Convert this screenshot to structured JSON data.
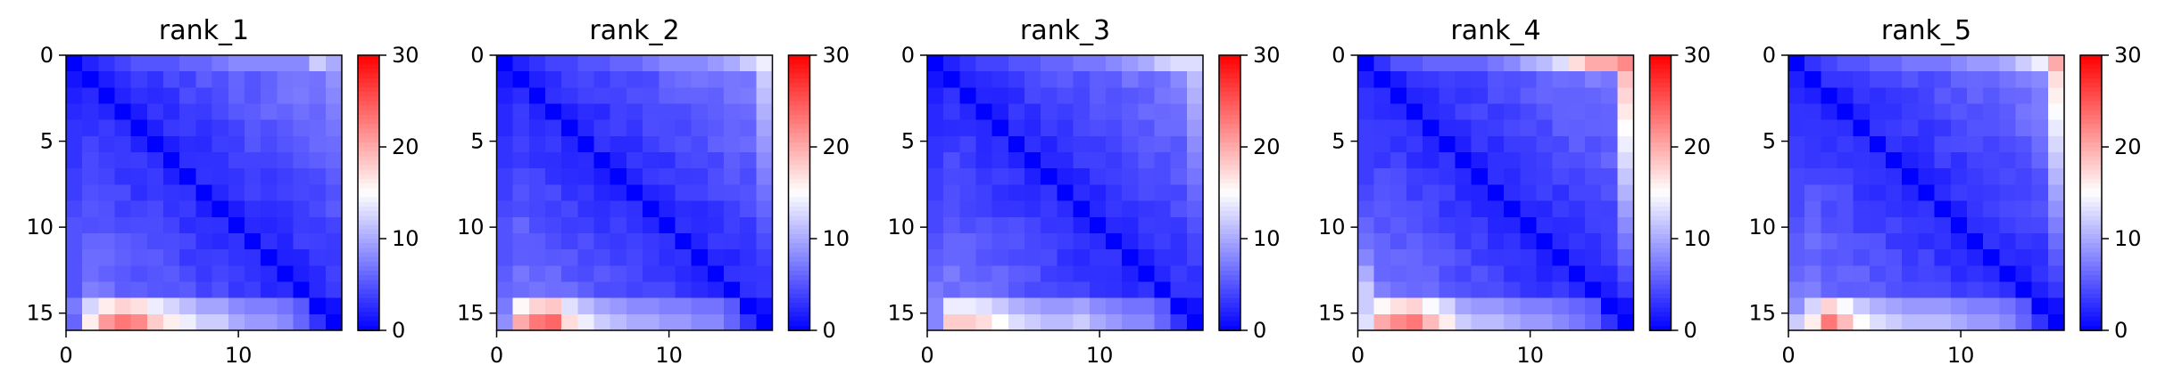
{
  "chart_data": [
    {
      "type": "heatmap",
      "title": "rank_1",
      "matrix_size": 17,
      "x_ticks": [
        0,
        10
      ],
      "y_ticks": [
        0,
        5,
        10,
        15
      ],
      "colorbar_ticks": [
        0,
        10,
        20,
        30
      ],
      "value_range": [
        0,
        30
      ],
      "colormap": "bwr",
      "first_row": [
        0,
        2,
        3,
        4,
        5,
        5,
        5,
        6,
        6,
        7,
        8,
        8,
        8,
        8,
        8,
        12,
        10
      ],
      "last_row": [
        14,
        16,
        21,
        23,
        22,
        18,
        16,
        14,
        12,
        12,
        10,
        9,
        9,
        8,
        6,
        3,
        0
      ]
    },
    {
      "type": "heatmap",
      "title": "rank_2",
      "matrix_size": 17,
      "x_ticks": [
        0,
        10
      ],
      "y_ticks": [
        0,
        5,
        10,
        15
      ],
      "colorbar_ticks": [
        0,
        10,
        20,
        30
      ],
      "value_range": [
        0,
        30
      ],
      "colormap": "bwr",
      "first_row": [
        0,
        2,
        3,
        4,
        4,
        5,
        5,
        6,
        6,
        7,
        8,
        8,
        8,
        9,
        10,
        12,
        14
      ],
      "last_row": [
        18,
        20,
        23,
        24,
        17,
        14,
        12,
        11,
        10,
        10,
        9,
        9,
        8,
        8,
        6,
        3,
        0
      ]
    },
    {
      "type": "heatmap",
      "title": "rank_3",
      "matrix_size": 17,
      "x_ticks": [
        0,
        10
      ],
      "y_ticks": [
        0,
        5,
        10,
        15
      ],
      "colorbar_ticks": [
        0,
        10,
        20,
        30
      ],
      "value_range": [
        0,
        30
      ],
      "colormap": "bwr",
      "first_row": [
        0,
        2,
        3,
        4,
        4,
        5,
        5,
        6,
        6,
        7,
        7,
        8,
        9,
        10,
        12,
        13,
        13
      ],
      "last_row": [
        19,
        18,
        18,
        17,
        15,
        13,
        12,
        11,
        11,
        12,
        10,
        9,
        8,
        8,
        6,
        3,
        0
      ]
    },
    {
      "type": "heatmap",
      "title": "rank_4",
      "matrix_size": 17,
      "x_ticks": [
        0,
        10
      ],
      "y_ticks": [
        0,
        5,
        10,
        15
      ],
      "colorbar_ticks": [
        0,
        10,
        20,
        30
      ],
      "value_range": [
        0,
        30
      ],
      "colormap": "bwr",
      "first_row": [
        0,
        3,
        5,
        5,
        6,
        6,
        6,
        6,
        7,
        8,
        10,
        11,
        13,
        17,
        20,
        20,
        22
      ],
      "last_row": [
        20,
        20,
        22,
        23,
        19,
        16,
        12,
        11,
        11,
        10,
        9,
        9,
        8,
        7,
        6,
        3,
        0
      ]
    },
    {
      "type": "heatmap",
      "title": "rank_5",
      "matrix_size": 17,
      "x_ticks": [
        0,
        10
      ],
      "y_ticks": [
        0,
        5,
        10,
        15
      ],
      "colorbar_ticks": [
        0,
        10,
        20,
        30
      ],
      "value_range": [
        0,
        30
      ],
      "colormap": "bwr",
      "first_row": [
        0,
        3,
        4,
        5,
        5,
        6,
        6,
        7,
        7,
        7,
        8,
        9,
        9,
        10,
        12,
        14,
        20
      ],
      "last_row": [
        14,
        16,
        23,
        19,
        15,
        13,
        12,
        11,
        11,
        11,
        10,
        9,
        9,
        8,
        6,
        3,
        0
      ]
    }
  ]
}
